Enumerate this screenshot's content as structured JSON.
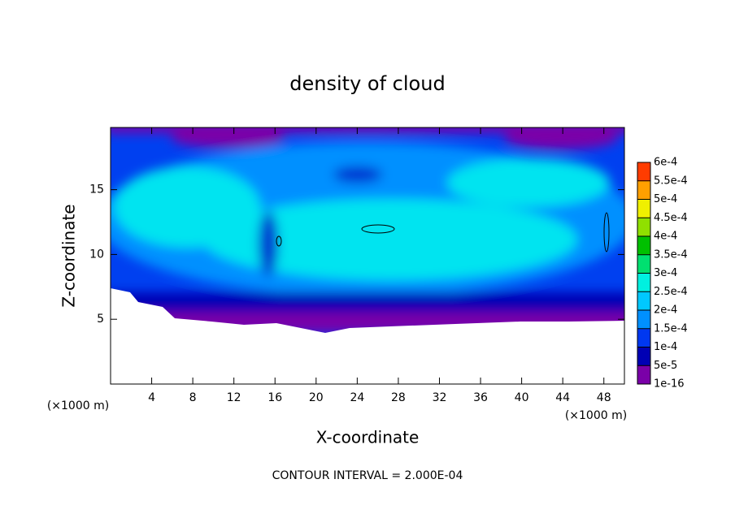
{
  "chart_data": {
    "type": "contour",
    "title": "density of cloud",
    "x_label": "X-coordinate",
    "y_label": "Z-coordinate",
    "x_unit_label": "(×1000 m)",
    "y_unit_label": "(×1000 m)",
    "footnote": "CONTOUR INTERVAL = 2.000E-04",
    "xlim": [
      0,
      50
    ],
    "xticks": [
      4,
      8,
      12,
      16,
      20,
      24,
      28,
      32,
      36,
      40,
      44,
      48
    ],
    "ylim": [
      0,
      19.8
    ],
    "yticks": [
      5,
      10,
      15
    ],
    "colorbar": {
      "ticks": [
        {
          "value": 1e-16,
          "label": "1e-16"
        },
        {
          "value": 5e-05,
          "label": "5e-5"
        },
        {
          "value": 0.0001,
          "label": "1e-4"
        },
        {
          "value": 0.00015,
          "label": "1.5e-4"
        },
        {
          "value": 0.0002,
          "label": "2e-4"
        },
        {
          "value": 0.00025,
          "label": "2.5e-4"
        },
        {
          "value": 0.0003,
          "label": "3e-4"
        },
        {
          "value": 0.00035,
          "label": "3.5e-4"
        },
        {
          "value": 0.0004,
          "label": "4e-4"
        },
        {
          "value": 0.00045,
          "label": "4.5e-4"
        },
        {
          "value": 0.0005,
          "label": "5e-4"
        },
        {
          "value": 0.00055,
          "label": "5.5e-4"
        },
        {
          "value": 0.0006,
          "label": "6e-4"
        }
      ],
      "colors": [
        "#7a00a8",
        "#0000b4",
        "#0038f0",
        "#0090ff",
        "#00c8ff",
        "#00f0e0",
        "#00e070",
        "#00c000",
        "#90e000",
        "#f0f000",
        "#ffa000",
        "#ff3c00",
        "#ff6060",
        "#f8a0a0"
      ]
    }
  }
}
